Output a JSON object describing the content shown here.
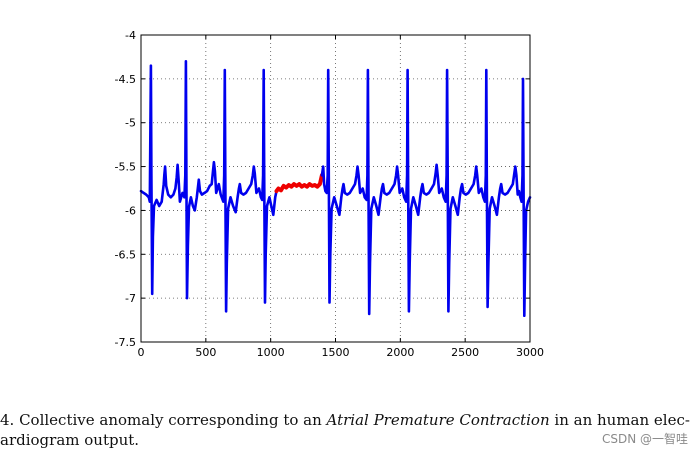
{
  "chart_data": {
    "type": "line",
    "title": "",
    "xlabel": "",
    "ylabel": "",
    "xlim": [
      0,
      3000
    ],
    "ylim": [
      -7.5,
      -4
    ],
    "x_ticks": [
      0,
      500,
      1000,
      1500,
      2000,
      2500,
      3000
    ],
    "y_ticks": [
      -4,
      -4.5,
      -5,
      -5.5,
      -6,
      -6.5,
      -7,
      -7.5
    ],
    "x_tick_labels": [
      "0",
      "500",
      "1000",
      "1500",
      "2000",
      "2500",
      "3000"
    ],
    "y_tick_labels": [
      "-4",
      "-4.5",
      "-5",
      "-5.5",
      "-6",
      "-6.5",
      "-7",
      "-7.5"
    ],
    "grid": true,
    "grid_style": "dotted",
    "series": [
      {
        "color": "#0000ee",
        "role": "normal-ecg",
        "points": [
          [
            0,
            -5.78
          ],
          [
            20,
            -5.8
          ],
          [
            40,
            -5.82
          ],
          [
            60,
            -5.85
          ],
          [
            68,
            -5.9
          ],
          [
            72,
            -5.2
          ],
          [
            76,
            -4.35
          ],
          [
            80,
            -5.6
          ],
          [
            86,
            -6.95
          ],
          [
            92,
            -6.3
          ],
          [
            100,
            -5.95
          ],
          [
            120,
            -5.88
          ],
          [
            140,
            -5.95
          ],
          [
            160,
            -5.9
          ],
          [
            175,
            -5.7
          ],
          [
            180,
            -5.6
          ],
          [
            186,
            -5.5
          ],
          [
            194,
            -5.72
          ],
          [
            210,
            -5.82
          ],
          [
            230,
            -5.85
          ],
          [
            250,
            -5.82
          ],
          [
            265,
            -5.75
          ],
          [
            275,
            -5.62
          ],
          [
            282,
            -5.48
          ],
          [
            290,
            -5.65
          ],
          [
            300,
            -5.9
          ],
          [
            320,
            -5.8
          ],
          [
            335,
            -5.85
          ],
          [
            342,
            -5.6
          ],
          [
            346,
            -4.3
          ],
          [
            350,
            -5.6
          ],
          [
            355,
            -7.0
          ],
          [
            362,
            -6.4
          ],
          [
            370,
            -5.96
          ],
          [
            385,
            -5.85
          ],
          [
            400,
            -5.95
          ],
          [
            415,
            -6.0
          ],
          [
            430,
            -5.85
          ],
          [
            440,
            -5.72
          ],
          [
            446,
            -5.65
          ],
          [
            455,
            -5.78
          ],
          [
            470,
            -5.82
          ],
          [
            490,
            -5.8
          ],
          [
            510,
            -5.78
          ],
          [
            530,
            -5.72
          ],
          [
            545,
            -5.7
          ],
          [
            555,
            -5.55
          ],
          [
            562,
            -5.45
          ],
          [
            570,
            -5.55
          ],
          [
            580,
            -5.8
          ],
          [
            600,
            -5.7
          ],
          [
            615,
            -5.82
          ],
          [
            635,
            -5.9
          ],
          [
            642,
            -5.6
          ],
          [
            646,
            -4.4
          ],
          [
            650,
            -5.6
          ],
          [
            656,
            -7.15
          ],
          [
            662,
            -6.6
          ],
          [
            672,
            -5.98
          ],
          [
            690,
            -5.85
          ],
          [
            710,
            -5.95
          ],
          [
            730,
            -6.02
          ],
          [
            745,
            -5.85
          ],
          [
            755,
            -5.75
          ],
          [
            762,
            -5.7
          ],
          [
            772,
            -5.8
          ],
          [
            790,
            -5.82
          ],
          [
            810,
            -5.8
          ],
          [
            830,
            -5.75
          ],
          [
            850,
            -5.7
          ],
          [
            862,
            -5.6
          ],
          [
            870,
            -5.5
          ],
          [
            878,
            -5.58
          ],
          [
            890,
            -5.8
          ],
          [
            910,
            -5.75
          ],
          [
            925,
            -5.85
          ],
          [
            935,
            -5.88
          ],
          [
            942,
            -5.6
          ],
          [
            946,
            -4.4
          ],
          [
            950,
            -5.6
          ],
          [
            956,
            -7.05
          ],
          [
            962,
            -6.5
          ],
          [
            972,
            -5.95
          ],
          [
            990,
            -5.85
          ],
          [
            1005,
            -5.95
          ],
          [
            1020,
            -6.05
          ],
          [
            1035,
            -5.85
          ],
          [
            1045,
            -5.78
          ]
        ]
      },
      {
        "color": "#ee0000",
        "role": "collective-anomaly",
        "points": [
          [
            1045,
            -5.78
          ],
          [
            1060,
            -5.75
          ],
          [
            1080,
            -5.77
          ],
          [
            1100,
            -5.72
          ],
          [
            1120,
            -5.74
          ],
          [
            1140,
            -5.71
          ],
          [
            1160,
            -5.73
          ],
          [
            1180,
            -5.7
          ],
          [
            1200,
            -5.72
          ],
          [
            1220,
            -5.7
          ],
          [
            1240,
            -5.73
          ],
          [
            1260,
            -5.71
          ],
          [
            1280,
            -5.73
          ],
          [
            1300,
            -5.7
          ],
          [
            1320,
            -5.72
          ],
          [
            1340,
            -5.71
          ],
          [
            1360,
            -5.73
          ],
          [
            1380,
            -5.7
          ],
          [
            1395,
            -5.6
          ]
        ]
      },
      {
        "color": "#0000ee",
        "role": "normal-ecg",
        "points": [
          [
            1395,
            -5.6
          ],
          [
            1405,
            -5.5
          ],
          [
            1412,
            -5.7
          ],
          [
            1422,
            -5.78
          ],
          [
            1432,
            -5.8
          ],
          [
            1440,
            -5.6
          ],
          [
            1444,
            -4.4
          ],
          [
            1448,
            -5.6
          ],
          [
            1454,
            -7.05
          ],
          [
            1460,
            -6.5
          ],
          [
            1470,
            -5.98
          ],
          [
            1490,
            -5.85
          ],
          [
            1510,
            -5.95
          ],
          [
            1530,
            -6.05
          ],
          [
            1545,
            -5.85
          ],
          [
            1555,
            -5.75
          ],
          [
            1562,
            -5.7
          ],
          [
            1572,
            -5.8
          ],
          [
            1590,
            -5.82
          ],
          [
            1610,
            -5.8
          ],
          [
            1630,
            -5.75
          ],
          [
            1650,
            -5.7
          ],
          [
            1662,
            -5.6
          ],
          [
            1670,
            -5.5
          ],
          [
            1678,
            -5.6
          ],
          [
            1690,
            -5.8
          ],
          [
            1710,
            -5.75
          ],
          [
            1725,
            -5.85
          ],
          [
            1740,
            -5.88
          ],
          [
            1746,
            -5.6
          ],
          [
            1750,
            -4.4
          ],
          [
            1754,
            -5.6
          ],
          [
            1760,
            -7.18
          ],
          [
            1766,
            -6.6
          ],
          [
            1776,
            -5.98
          ],
          [
            1795,
            -5.85
          ],
          [
            1815,
            -5.95
          ],
          [
            1832,
            -6.05
          ],
          [
            1848,
            -5.85
          ],
          [
            1858,
            -5.75
          ],
          [
            1866,
            -5.7
          ],
          [
            1876,
            -5.8
          ],
          [
            1895,
            -5.82
          ],
          [
            1915,
            -5.8
          ],
          [
            1935,
            -5.75
          ],
          [
            1955,
            -5.7
          ],
          [
            1967,
            -5.6
          ],
          [
            1975,
            -5.5
          ],
          [
            1983,
            -5.6
          ],
          [
            1995,
            -5.8
          ],
          [
            2015,
            -5.75
          ],
          [
            2030,
            -5.85
          ],
          [
            2045,
            -5.9
          ],
          [
            2052,
            -5.6
          ],
          [
            2056,
            -4.4
          ],
          [
            2060,
            -5.6
          ],
          [
            2066,
            -7.15
          ],
          [
            2072,
            -6.6
          ],
          [
            2082,
            -5.98
          ],
          [
            2100,
            -5.85
          ],
          [
            2120,
            -5.95
          ],
          [
            2138,
            -6.05
          ],
          [
            2153,
            -5.85
          ],
          [
            2163,
            -5.75
          ],
          [
            2171,
            -5.7
          ],
          [
            2181,
            -5.8
          ],
          [
            2200,
            -5.82
          ],
          [
            2220,
            -5.8
          ],
          [
            2240,
            -5.75
          ],
          [
            2260,
            -5.7
          ],
          [
            2272,
            -5.58
          ],
          [
            2280,
            -5.48
          ],
          [
            2288,
            -5.6
          ],
          [
            2300,
            -5.8
          ],
          [
            2320,
            -5.75
          ],
          [
            2335,
            -5.85
          ],
          [
            2350,
            -5.9
          ],
          [
            2357,
            -5.6
          ],
          [
            2361,
            -4.4
          ],
          [
            2365,
            -5.6
          ],
          [
            2371,
            -7.15
          ],
          [
            2377,
            -6.6
          ],
          [
            2387,
            -5.98
          ],
          [
            2405,
            -5.85
          ],
          [
            2425,
            -5.95
          ],
          [
            2443,
            -6.05
          ],
          [
            2458,
            -5.85
          ],
          [
            2468,
            -5.75
          ],
          [
            2476,
            -5.7
          ],
          [
            2486,
            -5.8
          ],
          [
            2505,
            -5.82
          ],
          [
            2525,
            -5.8
          ],
          [
            2545,
            -5.75
          ],
          [
            2565,
            -5.7
          ],
          [
            2577,
            -5.6
          ],
          [
            2585,
            -5.5
          ],
          [
            2593,
            -5.6
          ],
          [
            2605,
            -5.8
          ],
          [
            2625,
            -5.75
          ],
          [
            2640,
            -5.85
          ],
          [
            2652,
            -5.9
          ],
          [
            2659,
            -5.6
          ],
          [
            2663,
            -4.4
          ],
          [
            2667,
            -5.6
          ],
          [
            2673,
            -7.1
          ],
          [
            2679,
            -6.6
          ],
          [
            2689,
            -5.98
          ],
          [
            2707,
            -5.85
          ],
          [
            2727,
            -5.95
          ],
          [
            2745,
            -6.05
          ],
          [
            2760,
            -5.85
          ],
          [
            2770,
            -5.75
          ],
          [
            2778,
            -5.7
          ],
          [
            2788,
            -5.8
          ],
          [
            2807,
            -5.82
          ],
          [
            2827,
            -5.8
          ],
          [
            2847,
            -5.75
          ],
          [
            2867,
            -5.7
          ],
          [
            2879,
            -5.58
          ],
          [
            2887,
            -5.5
          ],
          [
            2895,
            -5.6
          ],
          [
            2905,
            -5.82
          ],
          [
            2915,
            -5.78
          ],
          [
            2925,
            -5.85
          ],
          [
            2935,
            -5.9
          ],
          [
            2942,
            -5.6
          ],
          [
            2946,
            -4.5
          ],
          [
            2950,
            -5.6
          ],
          [
            2956,
            -7.2
          ],
          [
            2962,
            -6.6
          ],
          [
            2970,
            -6.0
          ],
          [
            2985,
            -5.9
          ],
          [
            3000,
            -5.85
          ]
        ]
      }
    ]
  },
  "caption": {
    "line1_prefix": "4. Collective anomaly corresponding to an ",
    "line1_italic": "Atrial Premature Contraction",
    "line1_suffix": " in an human elec-",
    "line2": "ardiogram output."
  },
  "watermark": "CSDN @一智哇"
}
